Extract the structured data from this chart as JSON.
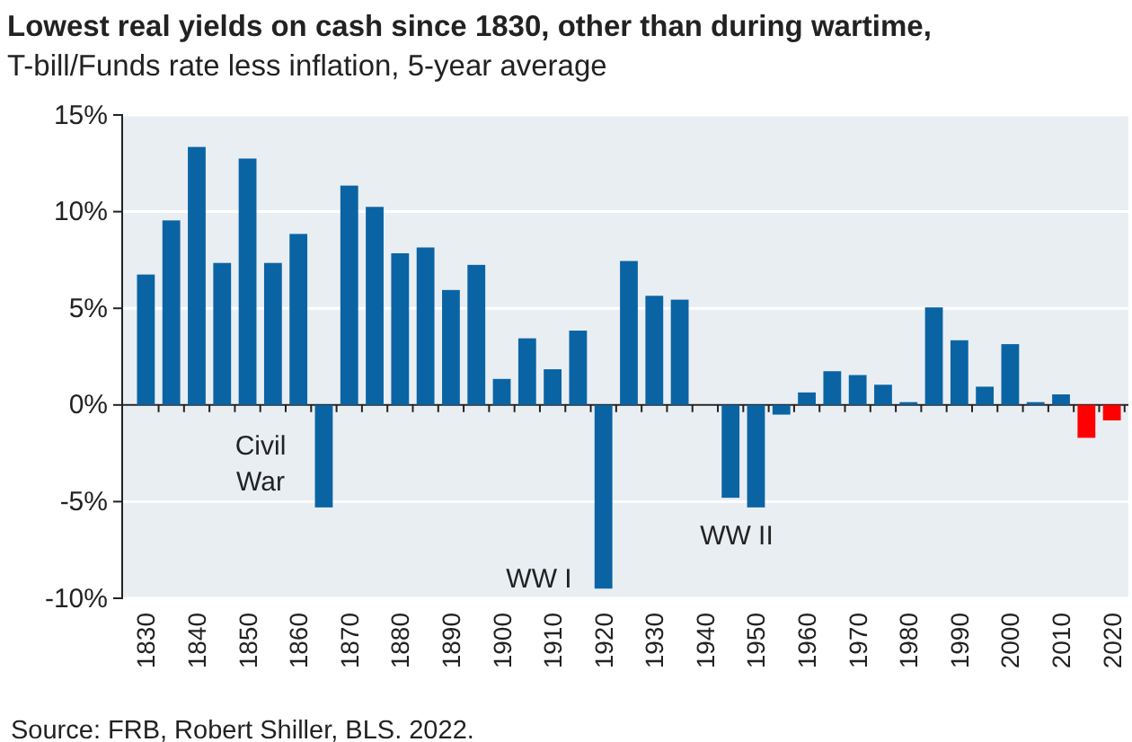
{
  "chart_data": {
    "type": "bar",
    "title": "Lowest real yields on cash since 1830, other than during wartime,",
    "subtitle": "T-bill/Funds rate less inflation, 5-year average",
    "categories": [
      "1830",
      null,
      "1840",
      null,
      "1850",
      null,
      "1860",
      null,
      "1870",
      null,
      "1880",
      null,
      "1890",
      null,
      "1900",
      null,
      "1910",
      null,
      "1920",
      null,
      "1930",
      null,
      "1940",
      null,
      "1950",
      null,
      "1960",
      null,
      "1970",
      null,
      "1980",
      null,
      "1990",
      null,
      "2000",
      null,
      "2010",
      null,
      "2020"
    ],
    "values": [
      6.7,
      9.5,
      13.3,
      7.3,
      12.7,
      7.3,
      8.8,
      -5.3,
      11.3,
      10.2,
      7.8,
      8.1,
      5.9,
      7.2,
      1.3,
      3.4,
      1.8,
      3.8,
      -9.5,
      7.4,
      5.6,
      5.4,
      0,
      -4.8,
      -5.3,
      -0.5,
      0.6,
      1.7,
      1.5,
      1.0,
      0.1,
      5.0,
      3.3,
      0.9,
      3.1,
      0.1,
      0.5,
      -1.7,
      -0.8
    ],
    "colors": [
      "#0a64a4",
      "#0a64a4",
      "#0a64a4",
      "#0a64a4",
      "#0a64a4",
      "#0a64a4",
      "#0a64a4",
      "#0a64a4",
      "#0a64a4",
      "#0a64a4",
      "#0a64a4",
      "#0a64a4",
      "#0a64a4",
      "#0a64a4",
      "#0a64a4",
      "#0a64a4",
      "#0a64a4",
      "#0a64a4",
      "#0a64a4",
      "#0a64a4",
      "#0a64a4",
      "#0a64a4",
      "#0a64a4",
      "#0a64a4",
      "#0a64a4",
      "#0a64a4",
      "#0a64a4",
      "#0a64a4",
      "#0a64a4",
      "#0a64a4",
      "#0a64a4",
      "#0a64a4",
      "#0a64a4",
      "#0a64a4",
      "#0a64a4",
      "#0a64a4",
      "#0a64a4",
      "#ff0000",
      "#ff0000"
    ],
    "ylim": [
      -10,
      15
    ],
    "yticks": [
      {
        "value": -10,
        "label": "-10%"
      },
      {
        "value": -5,
        "label": "-5%"
      },
      {
        "value": 0,
        "label": "0%"
      },
      {
        "value": 5,
        "label": "5%"
      },
      {
        "value": 10,
        "label": "10%"
      },
      {
        "value": 15,
        "label": "15%"
      }
    ],
    "grid": "y",
    "annotations": [
      "Civil War",
      "WW I",
      "WW II",
      "Source: FRB, Robert Shiller, BLS. 2022."
    ]
  }
}
